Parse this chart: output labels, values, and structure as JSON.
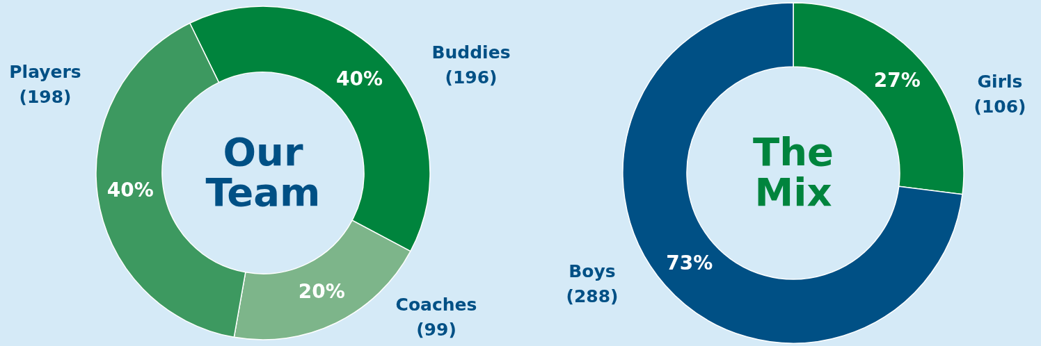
{
  "chart_data": [
    {
      "type": "donut",
      "title": "Our Team",
      "categories": [
        "Buddies (196)",
        "Coaches (99)",
        "Players (198)"
      ],
      "values": [
        40,
        20,
        40
      ],
      "colors": [
        "#00843d",
        "#7db58a",
        "#3d9960"
      ],
      "value_labels": [
        "40%",
        "20%",
        "40%"
      ]
    },
    {
      "type": "donut",
      "title": "The Mix",
      "categories": [
        "Girls (106)",
        "Boys (288)"
      ],
      "values": [
        27,
        73
      ],
      "colors": [
        "#00843d",
        "#005085"
      ],
      "value_labels": [
        "27%",
        "73%"
      ]
    }
  ]
}
